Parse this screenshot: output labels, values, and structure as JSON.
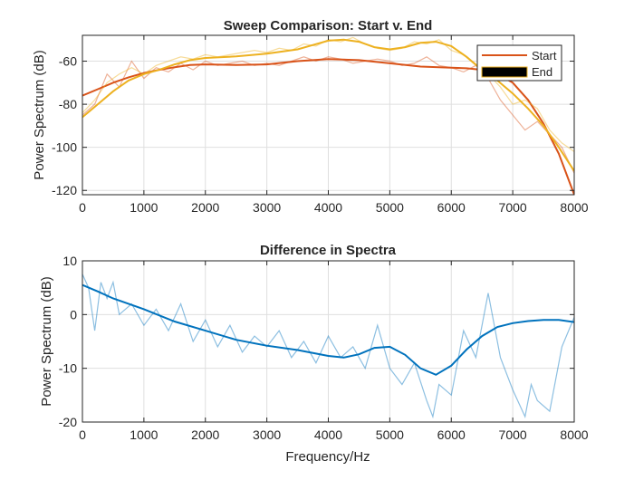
{
  "chart_data": [
    {
      "type": "line",
      "title": "Sweep Comparison: Start v. End",
      "xlabel": "",
      "ylabel": "Power Spectrum (dB)",
      "xlim": [
        0,
        8000
      ],
      "ylim": [
        -122,
        -48
      ],
      "xticks": [
        0,
        1000,
        2000,
        3000,
        4000,
        5000,
        6000,
        7000,
        8000
      ],
      "yticks": [
        -120,
        -100,
        -80,
        -60
      ],
      "grid": true,
      "legend_position": "top-right",
      "legend": [
        "Start",
        "End"
      ],
      "colors": {
        "Start": "#d95319",
        "End": "#edb120",
        "End_legend_fill": "#000000"
      },
      "series": [
        {
          "name": "Start",
          "smooth": {
            "x": [
              0,
              250,
              500,
              750,
              1000,
              1250,
              1500,
              1750,
              2000,
              2500,
              3000,
              3500,
              4000,
              4500,
              5000,
              5500,
              6000,
              6250,
              6500,
              6750,
              7000,
              7250,
              7500,
              7750,
              8000
            ],
            "y": [
              -76,
              -73,
              -70,
              -67.5,
              -65.5,
              -64,
              -62.8,
              -61.8,
              -61.5,
              -61.8,
              -61.5,
              -60,
              -59,
              -59.5,
              -61,
              -62.5,
              -63,
              -63.3,
              -64,
              -66,
              -70,
              -78,
              -89,
              -103,
              -122
            ]
          },
          "raw": {
            "x": [
              0,
              200,
              400,
              600,
              800,
              1000,
              1200,
              1400,
              1600,
              1800,
              2000,
              2200,
              2400,
              2600,
              2800,
              3000,
              3200,
              3400,
              3600,
              3800,
              4000,
              4200,
              4400,
              4600,
              4800,
              5000,
              5200,
              5400,
              5600,
              5800,
              6000,
              6200,
              6400,
              6600,
              6800,
              7000,
              7200,
              7400,
              7600,
              7800,
              8000
            ],
            "y": [
              -85,
              -80,
              -66,
              -72,
              -60,
              -68,
              -63,
              -65,
              -61,
              -64,
              -60,
              -62,
              -61,
              -60,
              -62,
              -61,
              -62,
              -60,
              -58,
              -60,
              -58,
              -59,
              -61,
              -60,
              -59,
              -60,
              -62,
              -61,
              -58,
              -62,
              -63,
              -65,
              -62,
              -68,
              -78,
              -85,
              -92,
              -88,
              -94,
              -100,
              -112
            ]
          }
        },
        {
          "name": "End",
          "smooth": {
            "x": [
              0,
              250,
              500,
              750,
              1000,
              1250,
              1500,
              1750,
              2000,
              2500,
              3000,
              3500,
              3750,
              4000,
              4250,
              4500,
              4750,
              5000,
              5250,
              5500,
              5750,
              6000,
              6250,
              6500,
              6750,
              7000,
              7250,
              7500,
              7750,
              8000
            ],
            "y": [
              -86,
              -80,
              -74,
              -69,
              -66,
              -64,
              -61.5,
              -59.5,
              -58.5,
              -57.8,
              -56.5,
              -54.5,
              -52.5,
              -50.5,
              -50,
              -51,
              -53.5,
              -54.5,
              -53.5,
              -51.5,
              -51,
              -53,
              -58,
              -64,
              -69,
              -75,
              -82,
              -90,
              -100,
              -111
            ]
          },
          "raw": {
            "x": [
              0,
              200,
              400,
              600,
              800,
              1000,
              1200,
              1400,
              1600,
              1800,
              2000,
              2200,
              2400,
              2600,
              2800,
              3000,
              3200,
              3400,
              3600,
              3800,
              4000,
              4200,
              4400,
              4600,
              4800,
              5000,
              5200,
              5400,
              5600,
              5800,
              6000,
              6200,
              6400,
              6600,
              6800,
              7000,
              7200,
              7400,
              7600,
              7800,
              8000
            ],
            "y": [
              -84,
              -78,
              -70,
              -66,
              -63,
              -66,
              -62,
              -60,
              -58,
              -59,
              -57,
              -58,
              -57,
              -56,
              -55,
              -56,
              -54,
              -55,
              -52,
              -53,
              -50,
              -51,
              -49,
              -52,
              -54,
              -55,
              -54,
              -51,
              -52,
              -50,
              -55,
              -57,
              -62,
              -66,
              -72,
              -80,
              -78,
              -82,
              -92,
              -98,
              -102
            ]
          }
        }
      ]
    },
    {
      "type": "line",
      "title": "Difference in Spectra",
      "xlabel": "Frequency/Hz",
      "ylabel": "Power Spectrum (dB)",
      "xlim": [
        0,
        8000
      ],
      "ylim": [
        -20,
        10
      ],
      "xticks": [
        0,
        1000,
        2000,
        3000,
        4000,
        5000,
        6000,
        7000,
        8000
      ],
      "yticks": [
        -20,
        -10,
        0,
        10
      ],
      "grid": true,
      "colors": {
        "line": "#0072bd"
      },
      "series": [
        {
          "smooth": {
            "x": [
              0,
              250,
              500,
              1000,
              1500,
              2000,
              2500,
              3000,
              3500,
              4000,
              4250,
              4500,
              4750,
              5000,
              5250,
              5500,
              5750,
              6000,
              6250,
              6500,
              6750,
              7000,
              7250,
              7500,
              7750,
              8000
            ],
            "y": [
              5.5,
              4.3,
              3,
              1,
              -1.3,
              -3,
              -4.7,
              -5.8,
              -6.6,
              -7.7,
              -8,
              -7.4,
              -6.2,
              -6,
              -7.5,
              -10,
              -11.2,
              -9.5,
              -6.5,
              -4,
              -2.3,
              -1.6,
              -1.2,
              -1,
              -1,
              -1.4
            ]
          },
          "raw": {
            "x": [
              0,
              100,
              200,
              300,
              400,
              500,
              600,
              800,
              1000,
              1200,
              1400,
              1600,
              1800,
              2000,
              2200,
              2400,
              2600,
              2800,
              3000,
              3200,
              3400,
              3600,
              3800,
              4000,
              4200,
              4400,
              4600,
              4800,
              5000,
              5200,
              5400,
              5600,
              5700,
              5800,
              6000,
              6200,
              6400,
              6600,
              6800,
              7000,
              7200,
              7300,
              7400,
              7600,
              7800,
              8000
            ],
            "y": [
              7.5,
              5,
              -3,
              6,
              3,
              6,
              0,
              2,
              -2,
              1,
              -3,
              2,
              -5,
              -1,
              -6,
              -2,
              -7,
              -4,
              -6,
              -3,
              -8,
              -5,
              -9,
              -4,
              -8,
              -6,
              -10,
              -2,
              -10,
              -13,
              -9,
              -16,
              -19,
              -13,
              -15,
              -3,
              -8,
              4,
              -8,
              -14,
              -19,
              -13,
              -16,
              -18,
              -6,
              -0.5
            ]
          }
        }
      ]
    }
  ]
}
